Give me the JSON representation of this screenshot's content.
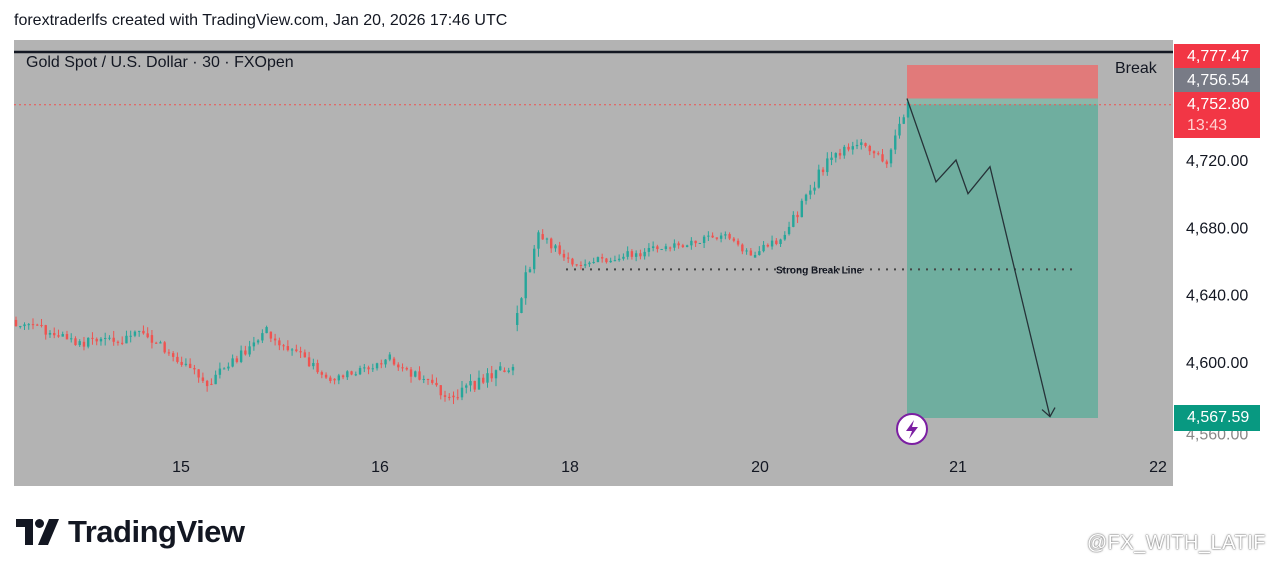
{
  "header": {
    "attribution": "forextraderlfs created with TradingView.com, Jan 20, 2026 17:46 UTC"
  },
  "footer": {
    "brand": "TradingView",
    "watermark": "@FX_WITH_LATIF"
  },
  "colors": {
    "bull": "#26a69a",
    "bear": "#ef5350",
    "background": "#b3b3b3",
    "stop_zone": "#e57373",
    "target_zone": "#6fae9f",
    "lightning": "#7b1fa2"
  },
  "chart_data": {
    "type": "candlestick",
    "title": "Gold Spot / U.S. Dollar · 30 · FXOpen",
    "ylim": [
      4550,
      4785
    ],
    "y_ticks": [
      "4,720.00",
      "4,680.00",
      "4,640.00",
      "4,600.00"
    ],
    "x_ticks": [
      "15",
      "16",
      "18",
      "20",
      "21",
      "22"
    ],
    "price_labels": {
      "stop": "4,777.47",
      "entry": "4,756.54",
      "last": "4,752.80",
      "countdown": "13:43",
      "target": "4,567.59",
      "hidden_tick": "4,560.00"
    },
    "annotations": {
      "break": "Break",
      "break_line": "Strong Break Line",
      "break_line_level": 4655
    },
    "position": {
      "type": "short",
      "entry": 4756.54,
      "stop": 4777.47,
      "target": 4567.59
    },
    "projection": [
      4756.54,
      4707,
      4720,
      4700,
      4716,
      4567.59
    ],
    "segments": [
      {
        "start": 4625,
        "end": 4612,
        "n": 16,
        "vol": 6,
        "seed": 3
      },
      {
        "start": 4612,
        "end": 4616,
        "n": 16,
        "vol": 7,
        "seed": 7
      },
      {
        "start": 4616,
        "end": 4587,
        "n": 14,
        "vol": 6,
        "seed": 11
      },
      {
        "start": 4587,
        "end": 4618,
        "n": 14,
        "vol": 6,
        "seed": 13
      },
      {
        "start": 4618,
        "end": 4590,
        "n": 15,
        "vol": 6,
        "seed": 17
      },
      {
        "start": 4590,
        "end": 4602,
        "n": 14,
        "vol": 5,
        "seed": 19
      },
      {
        "start": 4602,
        "end": 4580,
        "n": 14,
        "vol": 6,
        "seed": 23
      },
      {
        "start": 4580,
        "end": 4595,
        "n": 12,
        "vol": 8,
        "seed": 29
      },
      {
        "start": 4595,
        "end": 4596,
        "n": 3,
        "vol": 5,
        "seed": 31
      },
      {
        "start": 4622,
        "end": 4676,
        "n": 6,
        "vol": 9,
        "seed": 37
      },
      {
        "start": 4676,
        "end": 4658,
        "n": 8,
        "vol": 5,
        "seed": 41
      },
      {
        "start": 4658,
        "end": 4668,
        "n": 22,
        "vol": 5,
        "seed": 43
      },
      {
        "start": 4668,
        "end": 4676,
        "n": 14,
        "vol": 5,
        "seed": 47
      },
      {
        "start": 4676,
        "end": 4662,
        "n": 6,
        "vol": 4,
        "seed": 53
      },
      {
        "start": 4662,
        "end": 4676,
        "n": 8,
        "vol": 5,
        "seed": 59
      },
      {
        "start": 4676,
        "end": 4720,
        "n": 10,
        "vol": 7,
        "seed": 61
      },
      {
        "start": 4720,
        "end": 4730,
        "n": 8,
        "vol": 6,
        "seed": 67
      },
      {
        "start": 4730,
        "end": 4718,
        "n": 6,
        "vol": 6,
        "seed": 71
      },
      {
        "start": 4718,
        "end": 4756,
        "n": 5,
        "vol": 8,
        "seed": 73
      }
    ]
  }
}
